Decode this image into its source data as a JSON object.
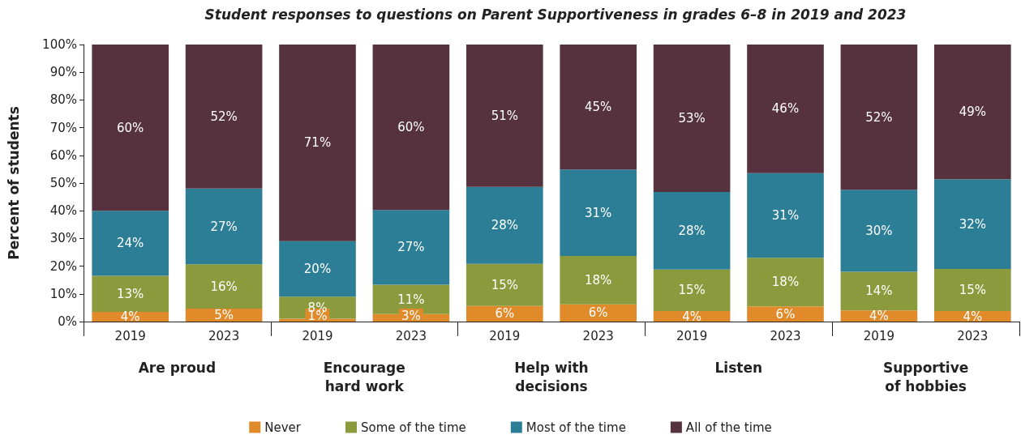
{
  "chart_data": {
    "type": "bar",
    "title": "Student responses to questions on Parent Supportiveness in grades 6–8 in 2019 and 2023",
    "ylabel": "Percent of students",
    "categories": [
      "2019",
      "2023",
      "2019",
      "2023",
      "2019",
      "2023",
      "2019",
      "2023",
      "2019",
      "2023"
    ],
    "annotations": [
      "Are proud",
      "Encourage\nhard work",
      "Help with\ndecisions",
      "Listen",
      "Supportive\nof hobbies"
    ],
    "stacked": true,
    "ylim": [
      0,
      100
    ],
    "yticks": [
      {
        "value": 0,
        "label": "0%"
      },
      {
        "value": 10,
        "label": "10%"
      },
      {
        "value": 20,
        "label": "20%"
      },
      {
        "value": 30,
        "label": "30%"
      },
      {
        "value": 40,
        "label": "40%"
      },
      {
        "value": 50,
        "label": "50%"
      },
      {
        "value": 60,
        "label": "60%"
      },
      {
        "value": 70,
        "label": "70%"
      },
      {
        "value": 80,
        "label": "80%"
      },
      {
        "value": 90,
        "label": "90%"
      },
      {
        "value": 100,
        "label": "100%"
      }
    ],
    "grid": false,
    "legend": "bottom",
    "series": [
      {
        "name": "Never",
        "color": "#e08a2a",
        "values": [
          3.5,
          4.7,
          1,
          2.7,
          5.6,
          6.2,
          3.8,
          5.5,
          4,
          3.8
        ],
        "value_labels": [
          "4%",
          "5%",
          "1%",
          "3%",
          "6%",
          "6%",
          "4%",
          "6%",
          "4%",
          "4%"
        ]
      },
      {
        "name": "Some of the time",
        "color": "#8a9a3c",
        "values": [
          13,
          16,
          8,
          10.6,
          15.2,
          17.5,
          15,
          17.5,
          14,
          15.2
        ],
        "value_labels": [
          "13%",
          "16%",
          "8%",
          "11%",
          "15%",
          "18%",
          "15%",
          "18%",
          "14%",
          "15%"
        ]
      },
      {
        "name": "Most of the time",
        "color": "#2c7d96",
        "values": [
          23.5,
          27.3,
          20,
          27,
          27.8,
          31.2,
          28,
          30.6,
          29.6,
          32.4
        ],
        "value_labels": [
          "24%",
          "27%",
          "20%",
          "27%",
          "28%",
          "31%",
          "28%",
          "31%",
          "30%",
          "32%"
        ]
      },
      {
        "name": "All of the time",
        "color": "#55323d",
        "values": [
          60,
          52,
          71,
          59.7,
          51.4,
          45.1,
          53.2,
          46.4,
          52.4,
          48.6
        ],
        "value_labels": [
          "60%",
          "52%",
          "71%",
          "60%",
          "51%",
          "45%",
          "53%",
          "46%",
          "52%",
          "49%"
        ]
      }
    ]
  }
}
